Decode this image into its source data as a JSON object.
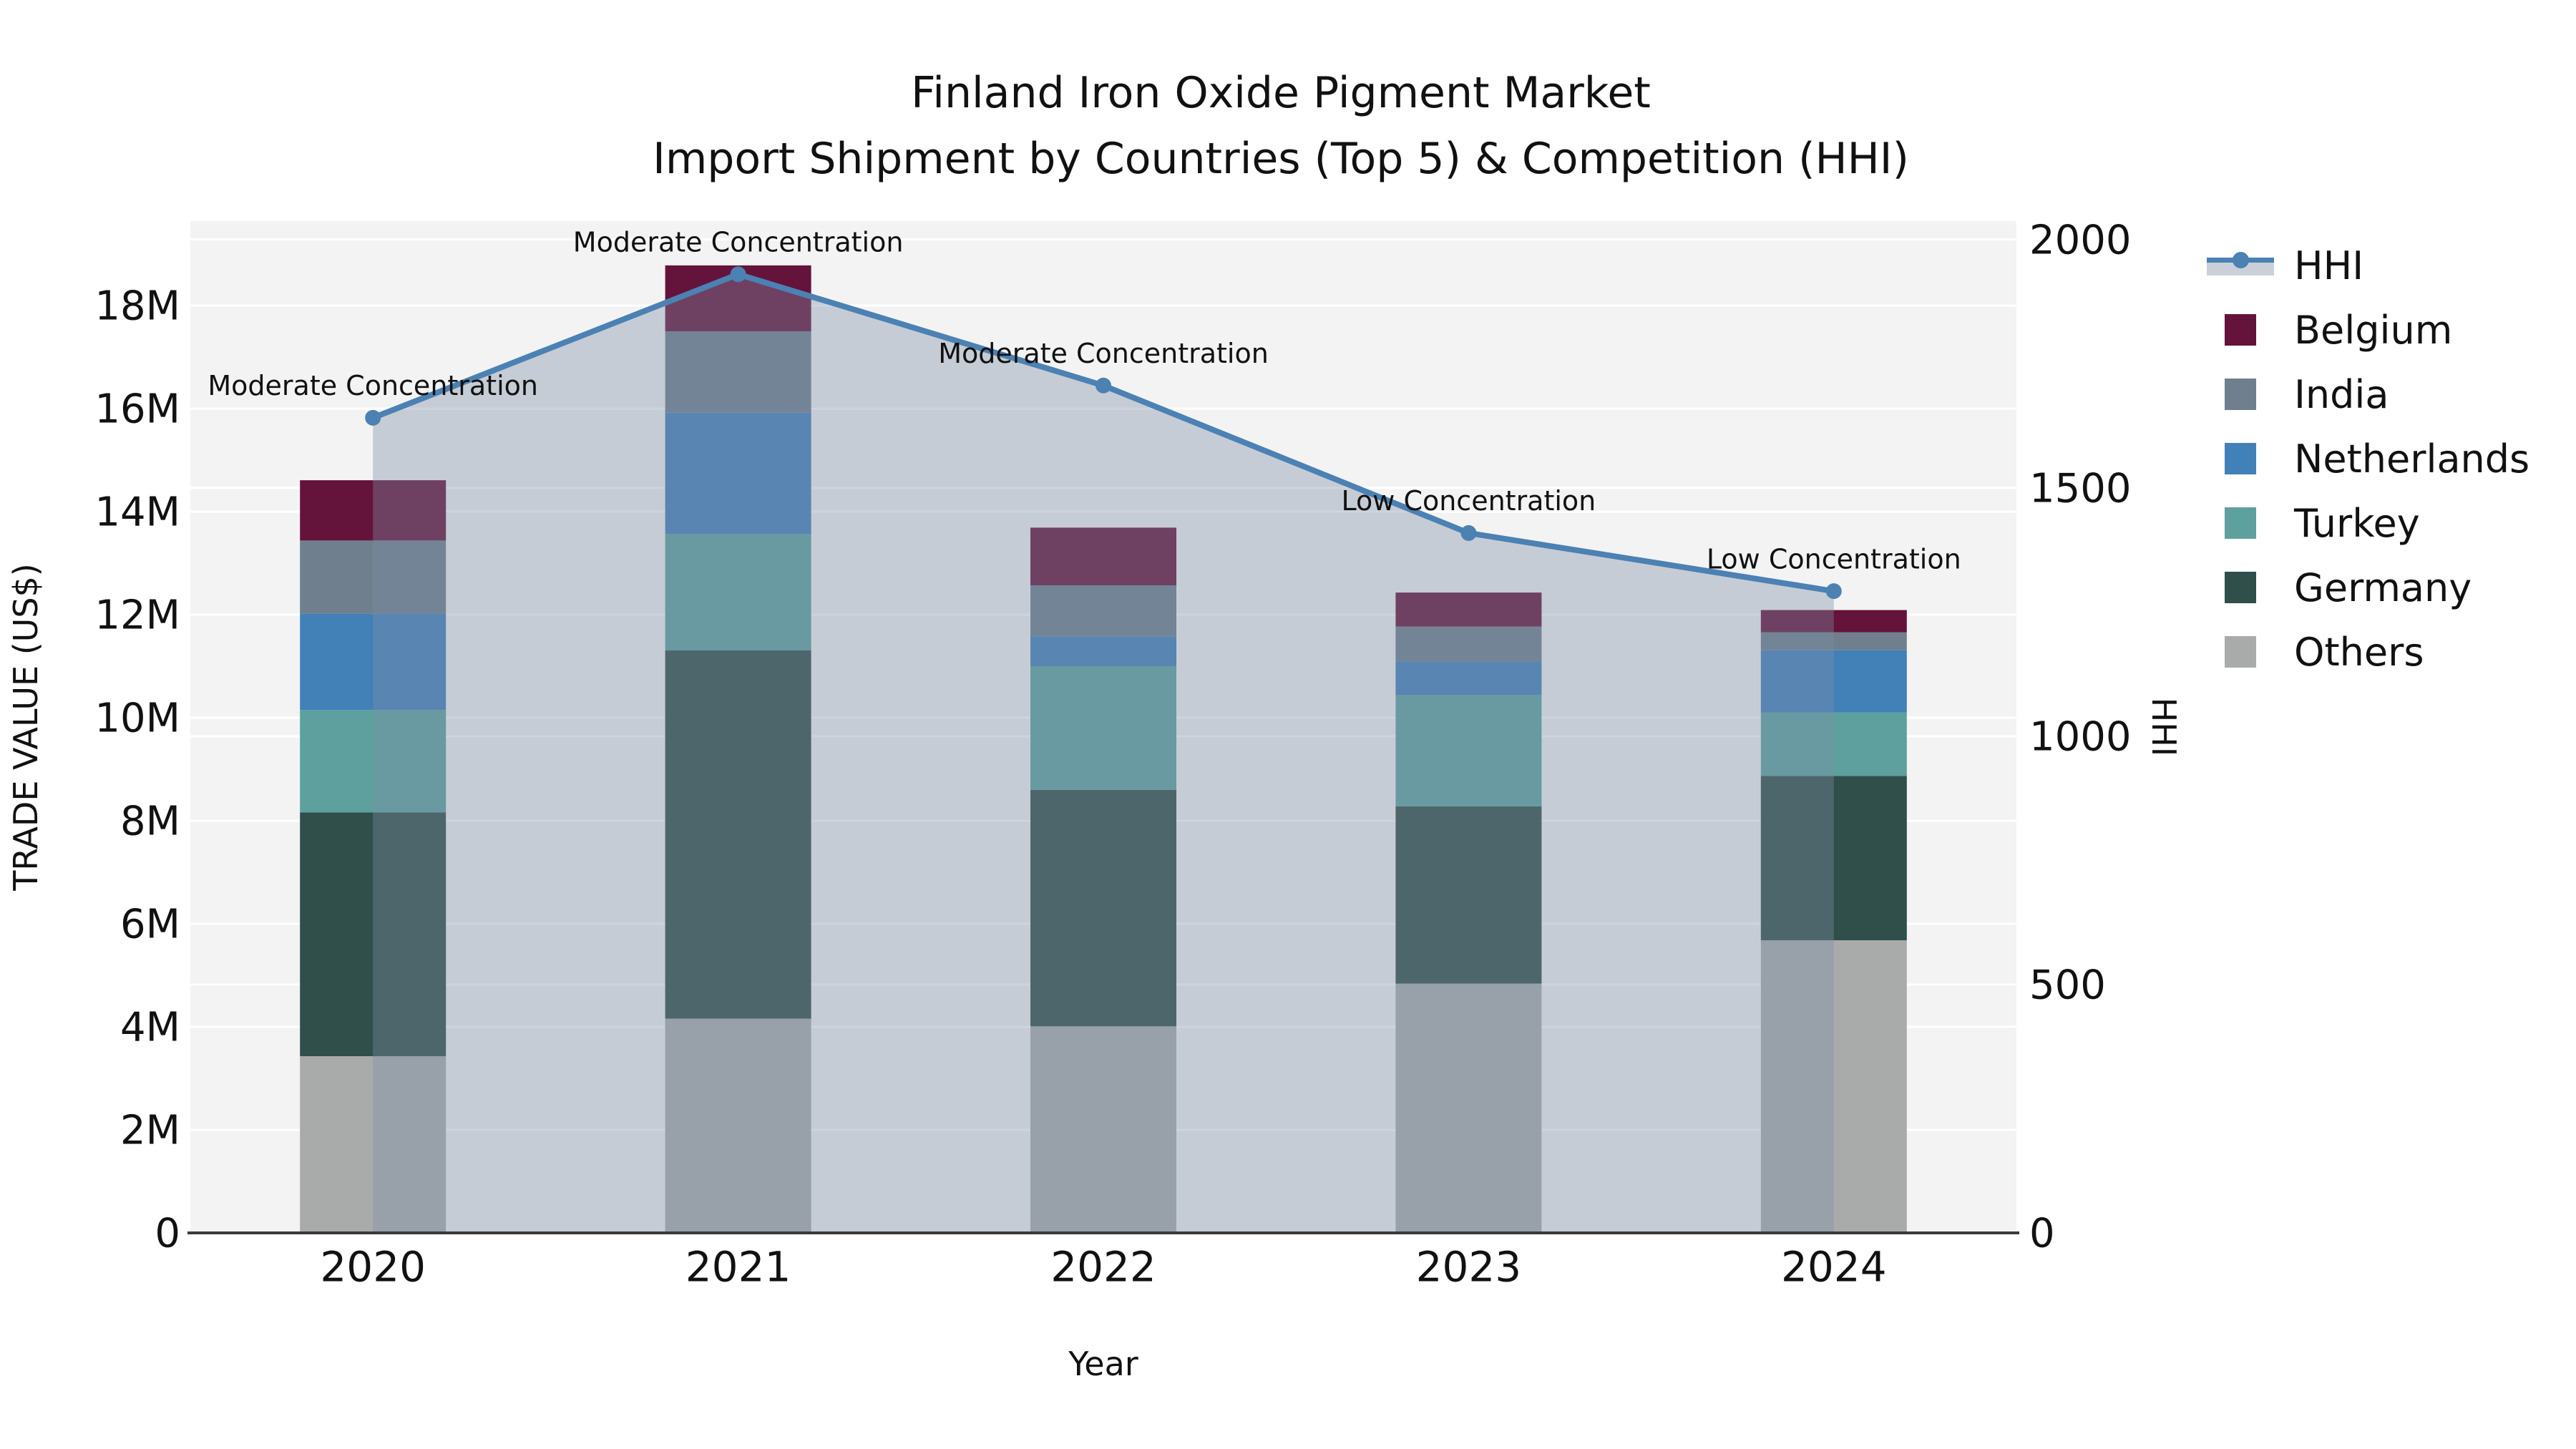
{
  "title": {
    "line1": "Finland Iron Oxide Pigment Market",
    "line2": "Import Shipment by Countries (Top 5) & Competition (HHI)"
  },
  "axes": {
    "left": {
      "title": "TRADE VALUE (US$)",
      "tick_labels": [
        "0",
        "2M",
        "4M",
        "6M",
        "8M",
        "10M",
        "12M",
        "14M",
        "16M",
        "18M"
      ],
      "tick_values": [
        0,
        2,
        4,
        6,
        8,
        10,
        12,
        14,
        16,
        18
      ],
      "max": 19.64
    },
    "right": {
      "title": "HHI",
      "tick_labels": [
        "0",
        "500",
        "1000",
        "1500",
        "2000"
      ],
      "tick_values": [
        0,
        500,
        1000,
        1500,
        2000
      ],
      "max": 2037
    },
    "x": {
      "title": "Year",
      "categories": [
        "2020",
        "2021",
        "2022",
        "2023",
        "2024"
      ]
    }
  },
  "chart_data": {
    "type": "bar+line",
    "title": "Finland Iron Oxide Pigment Market — Import Shipment by Countries (Top 5) & Competition (HHI)",
    "categories": [
      "2020",
      "2021",
      "2022",
      "2023",
      "2024"
    ],
    "stack_unit": "million US$",
    "series": [
      {
        "name": "Others",
        "color": "#a9abab",
        "values": [
          3.43,
          4.16,
          4.01,
          4.84,
          5.68
        ]
      },
      {
        "name": "Germany",
        "color": "#304e4a",
        "values": [
          4.73,
          7.15,
          4.59,
          3.44,
          3.19
        ]
      },
      {
        "name": "Turkey",
        "color": "#5da09e",
        "values": [
          1.99,
          2.26,
          2.4,
          2.16,
          1.23
        ]
      },
      {
        "name": "Netherlands",
        "color": "#4280b8",
        "values": [
          1.87,
          2.35,
          0.58,
          0.65,
          1.21
        ]
      },
      {
        "name": "India",
        "color": "#6f7f8e",
        "values": [
          1.42,
          1.58,
          0.99,
          0.68,
          0.35
        ]
      },
      {
        "name": "Belgium",
        "color": "#64133a",
        "values": [
          1.17,
          1.28,
          1.12,
          0.66,
          0.43
        ]
      }
    ],
    "bar_totals": [
      14.61,
      18.78,
      13.69,
      12.43,
      12.09
    ],
    "line": {
      "name": "HHI",
      "axis": "right",
      "color": "#4b81b3",
      "area_fill": "rgba(126,143,166,0.38)",
      "values": [
        1641,
        1930,
        1706,
        1409,
        1292
      ]
    },
    "annotations": [
      {
        "category": "2020",
        "text": "Moderate Concentration"
      },
      {
        "category": "2021",
        "text": "Moderate Concentration"
      },
      {
        "category": "2022",
        "text": "Moderate Concentration"
      },
      {
        "category": "2023",
        "text": "Low Concentration"
      },
      {
        "category": "2024",
        "text": "Low Concentration"
      }
    ],
    "xlabel": "Year",
    "ylabel_left": "TRADE VALUE (US$)",
    "ylabel_right": "HHI",
    "ylim_left": [
      0,
      19.64
    ],
    "ylim_right": [
      0,
      2037
    ],
    "grid": true,
    "legend_position": "right"
  },
  "legend": {
    "items": [
      {
        "label": "HHI",
        "type": "line",
        "color": "#4b81b3"
      },
      {
        "label": "Belgium",
        "type": "swatch",
        "color": "#64133a"
      },
      {
        "label": "India",
        "type": "swatch",
        "color": "#6f7f8e"
      },
      {
        "label": "Netherlands",
        "type": "swatch",
        "color": "#4280b8"
      },
      {
        "label": "Turkey",
        "type": "swatch",
        "color": "#5da09e"
      },
      {
        "label": "Germany",
        "type": "swatch",
        "color": "#304e4a"
      },
      {
        "label": "Others",
        "type": "swatch",
        "color": "#a9abab"
      }
    ]
  },
  "colors": {
    "plot_bg": "#f3f3f3",
    "gridline": "#ffffff",
    "axis_line": "#3a3a3a",
    "text": "#111111",
    "hhi_line": "#4b81b3",
    "hhi_area": "rgba(126,143,166,0.38)",
    "legend_area_band": "#c9d0d9"
  }
}
